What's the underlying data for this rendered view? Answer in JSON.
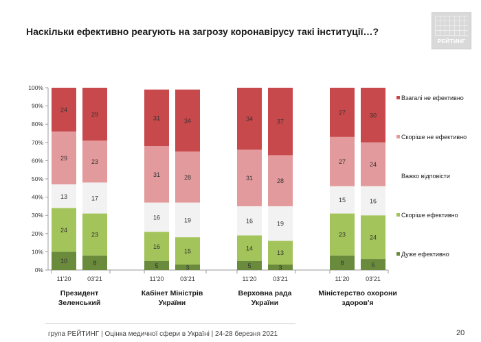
{
  "header": {
    "title": "Наскільки ефективно реагують на загрозу коронавірусу такі інституції…?",
    "logo_text": "РЕЙТИНГ"
  },
  "footer": {
    "text": "група РЕЙТИНГ  |  Оцінка медичної сфери в Україні  | 24-28 березня 2021",
    "page_number": "20"
  },
  "chart_data": {
    "type": "bar",
    "stacked": true,
    "percent_scale": true,
    "ylim": [
      0,
      100
    ],
    "yticks": [
      "0%",
      "10%",
      "20%",
      "30%",
      "40%",
      "50%",
      "60%",
      "70%",
      "80%",
      "90%",
      "100%"
    ],
    "grid": false,
    "legend_position": "right",
    "groups": [
      {
        "label": "Президент Зеленський",
        "label_lines": [
          "Президент",
          "Зеленський"
        ]
      },
      {
        "label": "Кабінет Міністрів України",
        "label_lines": [
          "Кабінет Міністрів",
          "України"
        ]
      },
      {
        "label": "Верховна рада України",
        "label_lines": [
          "Верховна рада",
          "України"
        ]
      },
      {
        "label": "Міністерство охорони здоров'я",
        "label_lines": [
          "Міністерство охорони",
          "здоров'я"
        ]
      }
    ],
    "waves": [
      "11'20",
      "03'21"
    ],
    "series": [
      {
        "name": "Дуже ефективно",
        "color": "#6a8a3c",
        "values": [
          [
            10,
            8
          ],
          [
            5,
            3
          ],
          [
            5,
            3
          ],
          [
            8,
            6
          ]
        ]
      },
      {
        "name": "Скоріше ефективно",
        "color": "#a3c45a",
        "values": [
          [
            24,
            23
          ],
          [
            16,
            15
          ],
          [
            14,
            13
          ],
          [
            23,
            24
          ]
        ]
      },
      {
        "name": "Важко відповісти",
        "color": "#f2f2f2",
        "values": [
          [
            13,
            17
          ],
          [
            16,
            19
          ],
          [
            16,
            19
          ],
          [
            15,
            16
          ]
        ]
      },
      {
        "name": "Скоріше не ефективно",
        "color": "#e39a9c",
        "values": [
          [
            29,
            23
          ],
          [
            31,
            28
          ],
          [
            31,
            28
          ],
          [
            27,
            24
          ]
        ]
      },
      {
        "name": "Взагалі не ефективно",
        "color": "#c8494b",
        "values": [
          [
            24,
            29
          ],
          [
            31,
            34
          ],
          [
            34,
            37
          ],
          [
            27,
            30
          ]
        ]
      }
    ],
    "legend_order": [
      "Взагалі не ефективно",
      "Скоріше не ефективно",
      "Важко відповісти",
      "Скоріше ефективно",
      "Дуже ефективно"
    ]
  }
}
